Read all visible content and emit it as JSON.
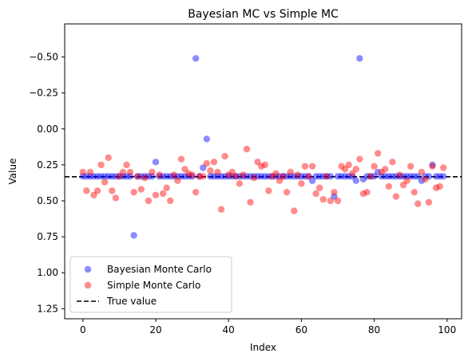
{
  "chart_data": {
    "type": "scatter",
    "title": "Bayesian MC vs Simple MC",
    "xlabel": "Index",
    "ylabel": "Value",
    "xlim": [
      -5,
      104
    ],
    "ylim": [
      -0.73,
      1.32
    ],
    "y_inverted": true,
    "x_ticks": [
      0,
      20,
      40,
      60,
      80,
      100
    ],
    "x_tick_labels": [
      "0",
      "20",
      "40",
      "60",
      "80",
      "100"
    ],
    "y_ticks": [
      -0.5,
      -0.25,
      0.0,
      0.25,
      0.5,
      0.75,
      1.0,
      1.25
    ],
    "y_tick_labels": [
      "−0.50",
      "−0.25",
      "0.00",
      "0.25",
      "0.50",
      "0.75",
      "1.00",
      "1.25"
    ],
    "grid": false,
    "legend_position": "lower-left",
    "true_value": 0.333,
    "series": [
      {
        "name": "Bayesian Monte Carlo",
        "color": "#0000ff",
        "marker": "circle",
        "x": [
          0,
          1,
          2,
          3,
          4,
          5,
          6,
          7,
          8,
          9,
          10,
          11,
          12,
          13,
          14,
          15,
          16,
          17,
          18,
          19,
          20,
          21,
          22,
          23,
          24,
          25,
          26,
          27,
          28,
          29,
          30,
          31,
          32,
          33,
          34,
          35,
          36,
          37,
          38,
          39,
          40,
          41,
          42,
          43,
          44,
          45,
          46,
          47,
          48,
          49,
          50,
          51,
          52,
          53,
          54,
          55,
          56,
          57,
          58,
          59,
          60,
          61,
          62,
          63,
          64,
          65,
          66,
          67,
          68,
          69,
          70,
          71,
          72,
          73,
          74,
          75,
          76,
          77,
          78,
          79,
          80,
          81,
          82,
          83,
          84,
          85,
          86,
          87,
          88,
          89,
          90,
          91,
          92,
          93,
          94,
          95,
          96,
          97,
          98,
          99
        ],
        "y": [
          0.33,
          0.33,
          0.33,
          0.33,
          0.33,
          0.33,
          0.33,
          0.33,
          0.33,
          0.33,
          0.33,
          0.33,
          0.33,
          0.33,
          0.74,
          0.33,
          0.33,
          0.33,
          0.33,
          0.33,
          0.23,
          0.33,
          0.33,
          0.33,
          0.33,
          0.33,
          0.33,
          0.33,
          0.33,
          0.33,
          0.33,
          -0.49,
          0.33,
          0.27,
          0.07,
          0.33,
          0.33,
          0.33,
          0.33,
          0.33,
          0.33,
          0.33,
          0.33,
          0.33,
          0.33,
          0.33,
          0.33,
          0.33,
          0.33,
          0.33,
          0.33,
          0.33,
          0.33,
          0.33,
          0.33,
          0.33,
          0.33,
          0.33,
          0.33,
          0.33,
          0.33,
          0.33,
          0.33,
          0.36,
          0.33,
          0.33,
          0.33,
          0.33,
          0.33,
          0.47,
          0.33,
          0.33,
          0.33,
          0.33,
          0.33,
          0.36,
          -0.49,
          0.35,
          0.33,
          0.33,
          0.33,
          0.3,
          0.33,
          0.33,
          0.33,
          0.33,
          0.33,
          0.33,
          0.33,
          0.33,
          0.33,
          0.33,
          0.33,
          0.36,
          0.33,
          0.33,
          0.25,
          0.33,
          0.33,
          0.33
        ]
      },
      {
        "name": "Simple Monte Carlo",
        "color": "#ff0000",
        "marker": "circle",
        "x": [
          0,
          1,
          2,
          3,
          4,
          5,
          6,
          7,
          8,
          9,
          10,
          11,
          12,
          13,
          14,
          15,
          16,
          17,
          18,
          19,
          20,
          21,
          22,
          23,
          24,
          25,
          26,
          27,
          28,
          29,
          30,
          31,
          32,
          33,
          34,
          35,
          36,
          37,
          38,
          39,
          40,
          41,
          42,
          43,
          44,
          45,
          46,
          47,
          48,
          49,
          50,
          51,
          52,
          53,
          54,
          55,
          56,
          57,
          58,
          59,
          60,
          61,
          62,
          63,
          64,
          65,
          66,
          67,
          68,
          69,
          70,
          71,
          72,
          73,
          74,
          75,
          76,
          77,
          78,
          79,
          80,
          81,
          82,
          83,
          84,
          85,
          86,
          87,
          88,
          89,
          90,
          91,
          92,
          93,
          94,
          95,
          96,
          97,
          98,
          99
        ],
        "y": [
          0.3,
          0.43,
          0.3,
          0.46,
          0.43,
          0.25,
          0.37,
          0.2,
          0.43,
          0.48,
          0.33,
          0.3,
          0.25,
          0.3,
          0.44,
          0.33,
          0.42,
          0.34,
          0.5,
          0.3,
          0.46,
          0.32,
          0.45,
          0.41,
          0.5,
          0.32,
          0.36,
          0.21,
          0.28,
          0.31,
          0.32,
          0.44,
          0.33,
          0.33,
          0.24,
          0.29,
          0.23,
          0.3,
          0.56,
          0.19,
          0.32,
          0.3,
          0.33,
          0.38,
          0.32,
          0.14,
          0.51,
          0.34,
          0.23,
          0.26,
          0.25,
          0.43,
          0.33,
          0.31,
          0.36,
          0.33,
          0.44,
          0.3,
          0.57,
          0.32,
          0.38,
          0.26,
          0.33,
          0.26,
          0.45,
          0.41,
          0.49,
          0.33,
          0.5,
          0.44,
          0.5,
          0.26,
          0.28,
          0.25,
          0.31,
          0.28,
          0.21,
          0.45,
          0.44,
          0.33,
          0.26,
          0.17,
          0.3,
          0.28,
          0.4,
          0.23,
          0.47,
          0.32,
          0.39,
          0.36,
          0.26,
          0.44,
          0.52,
          0.3,
          0.35,
          0.51,
          0.26,
          0.41,
          0.4,
          0.27
        ]
      }
    ],
    "reference_line": {
      "name": "True value",
      "color": "#000000",
      "style": "dashed"
    }
  }
}
